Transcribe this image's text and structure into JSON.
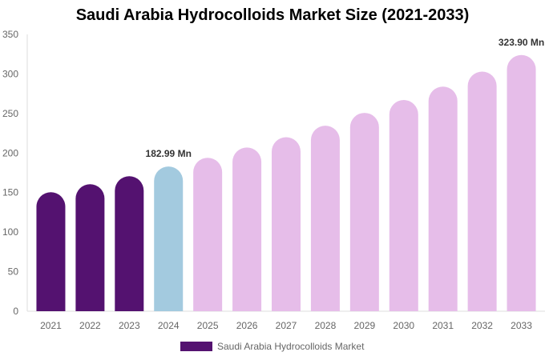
{
  "chart_data": {
    "type": "bar",
    "title": "Saudi Arabia Hydrocolloids Market Size (2021-2033)",
    "categories": [
      "2021",
      "2022",
      "2023",
      "2024",
      "2025",
      "2026",
      "2027",
      "2028",
      "2029",
      "2030",
      "2031",
      "2032",
      "2033"
    ],
    "series": [
      {
        "name": "Saudi Arabia Hydrocolloids Market",
        "values": [
          150.5,
          160.6,
          170.7,
          182.99,
          194,
          207,
          220,
          234.6,
          250.8,
          267,
          284,
          303,
          323.9
        ]
      }
    ],
    "bar_colors": [
      "#541270",
      "#541270",
      "#541270",
      "#a3cadf",
      "#e6bde9",
      "#e6bde9",
      "#e6bde9",
      "#e6bde9",
      "#e6bde9",
      "#e6bde9",
      "#e6bde9",
      "#e6bde9",
      "#e6bde9"
    ],
    "data_labels": [
      {
        "category": "2024",
        "text": "182.99 Mn"
      },
      {
        "category": "2033",
        "text": "323.90 Mn"
      }
    ],
    "yticks": [
      0,
      50,
      100,
      150,
      200,
      250,
      300,
      350
    ],
    "ylim": [
      0,
      350
    ],
    "grid": false,
    "legend": "bottom",
    "legend_color": "#541270"
  }
}
